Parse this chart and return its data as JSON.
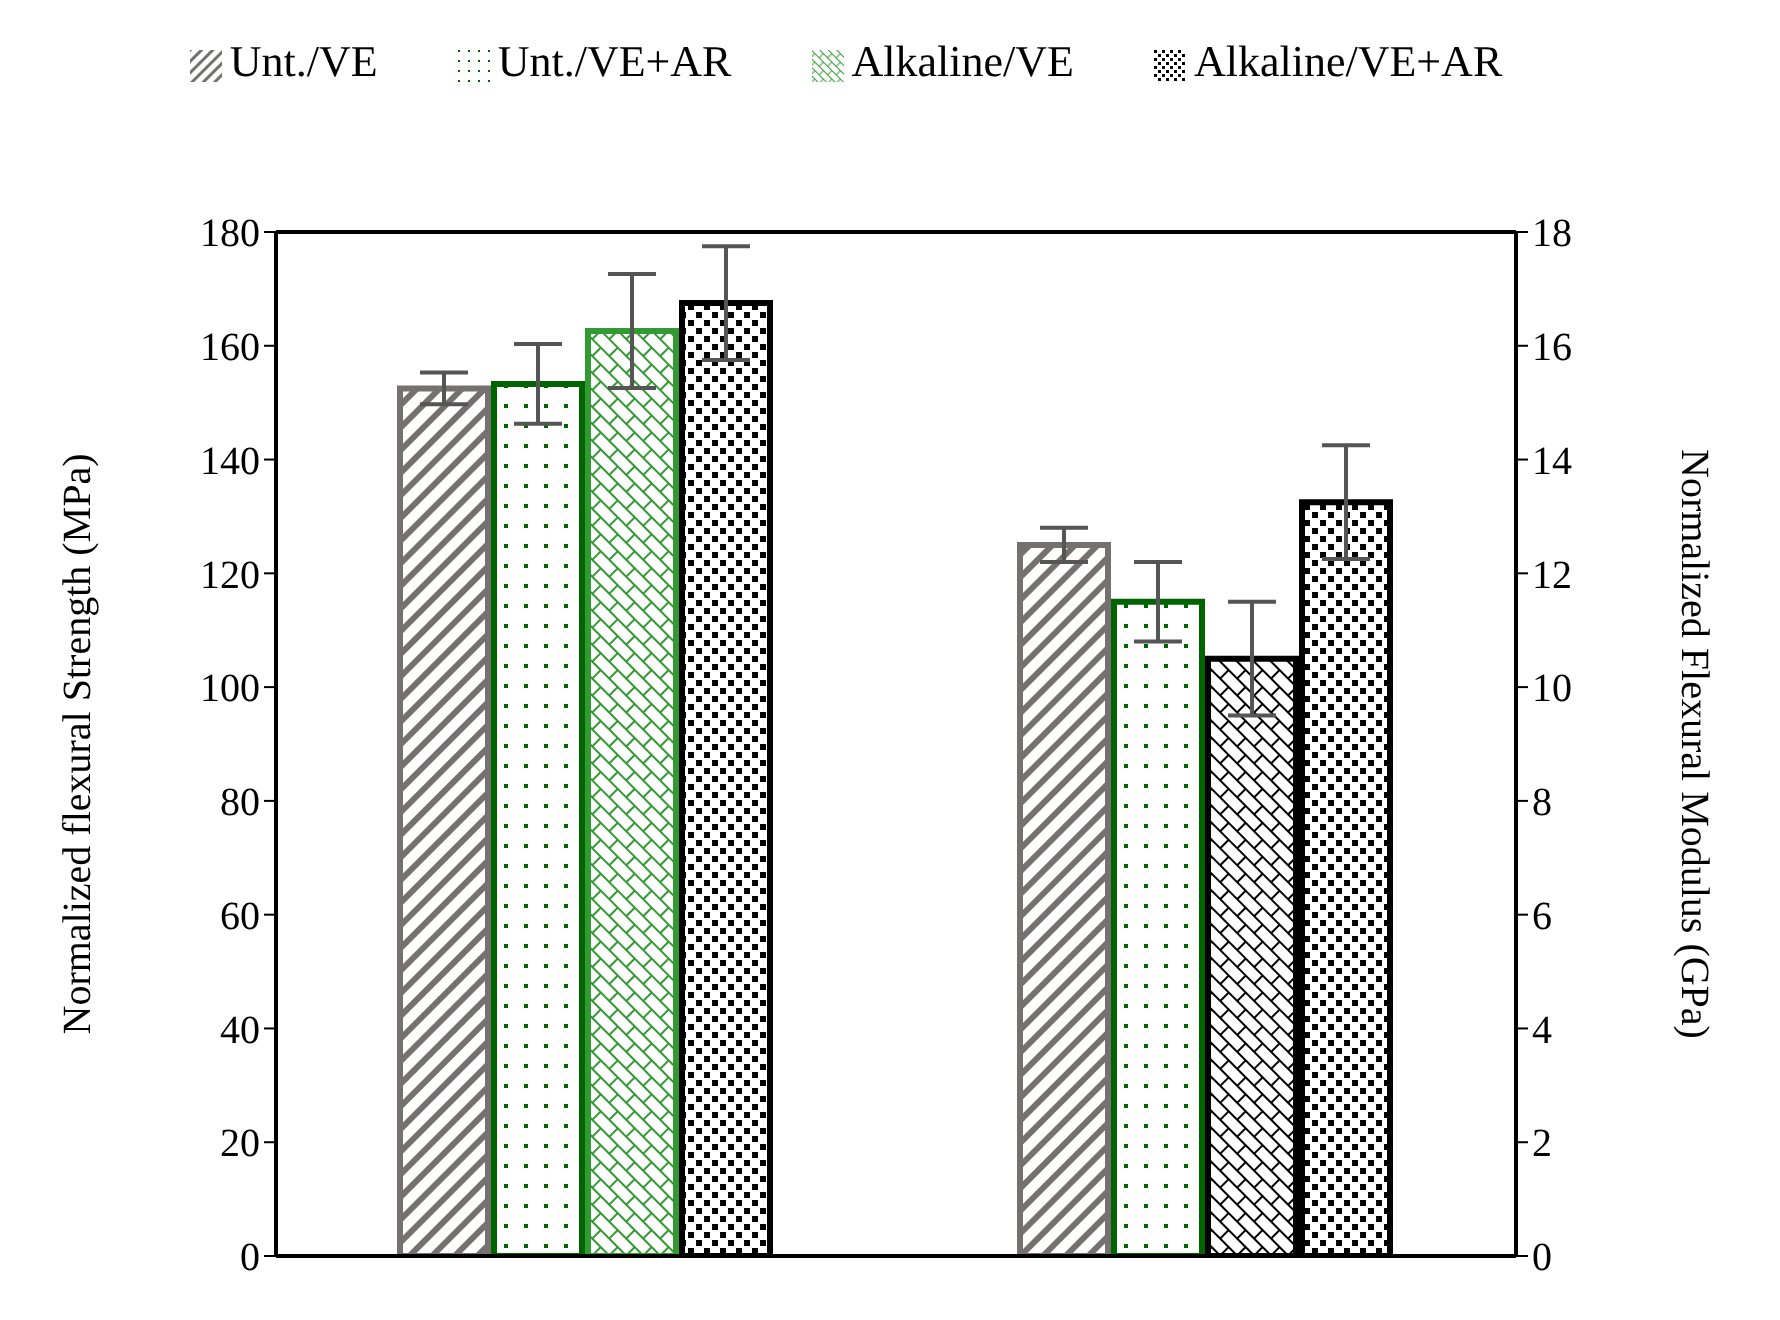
{
  "chart_data": {
    "type": "bar",
    "categories": [
      null,
      null
    ],
    "series": [
      {
        "name": "Unt./VE",
        "color": "#767171",
        "values": [
          152.5,
          null
        ],
        "errors": [
          2.8,
          null
        ]
      },
      {
        "name": "Unt./VE+AR",
        "color": "#006400",
        "values": [
          153.3,
          null
        ],
        "errors": [
          7,
          null
        ]
      },
      {
        "name": "Alkaline/VE",
        "color": "#339933",
        "values": [
          162.6,
          null
        ],
        "errors": [
          10,
          null
        ]
      },
      {
        "name": "Alkaline/VE+AR",
        "color": "#000000",
        "values": [
          167.5,
          null
        ],
        "errors": [
          10,
          null
        ]
      },
      {
        "color": "#767171",
        "axis": "y2",
        "values": [
          null,
          12.5
        ],
        "errors": [
          null,
          0.3
        ]
      },
      {
        "color": "#006400",
        "axis": "y2",
        "values": [
          null,
          11.5
        ],
        "errors": [
          null,
          0.7
        ]
      },
      {
        "color": "#000000",
        "axis": "y2",
        "values": [
          null,
          10.5
        ],
        "errors": [
          null,
          1.0
        ]
      },
      {
        "color": "#000000",
        "axis": "y2",
        "values": [
          null,
          13.25
        ],
        "errors": [
          null,
          1.0
        ]
      }
    ],
    "ylabel": "Normalized flexural Strength (MPa)",
    "y2label": "Normalized Flexural Modulus (GPa)",
    "ylim": [
      0,
      180
    ],
    "yticks": [
      0,
      20,
      40,
      60,
      80,
      100,
      120,
      140,
      160,
      180
    ],
    "y2lim": [
      0,
      18
    ],
    "y2ticks": [
      0,
      2,
      4,
      6,
      8,
      10,
      12,
      14,
      16,
      18
    ],
    "legend": "top",
    "grid": false
  }
}
